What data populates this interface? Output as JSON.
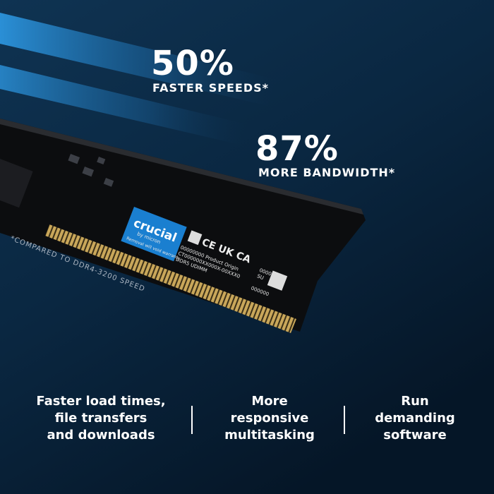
{
  "stats": [
    {
      "value": "50%",
      "caption": "FASTER SPEEDS*"
    },
    {
      "value": "87%",
      "caption": "MORE BANDWIDTH*"
    }
  ],
  "footnote": "*COMPARED TO DDR4-3200 SPEED",
  "module_label": {
    "brand": "crucial",
    "maker": "by micron",
    "warning": "Removal will void warranty",
    "lines": [
      "00000000   Product Origin",
      "CT000000XX000X-00XXX0",
      "DDR5 UDIMM"
    ],
    "codes": [
      "0000",
      "SU",
      "000000"
    ]
  },
  "features": [
    [
      "Faster load times,",
      "file transfers",
      "and downloads"
    ],
    [
      "More",
      "responsive",
      "multitasking"
    ],
    [
      "Run",
      "demanding",
      "software"
    ]
  ]
}
